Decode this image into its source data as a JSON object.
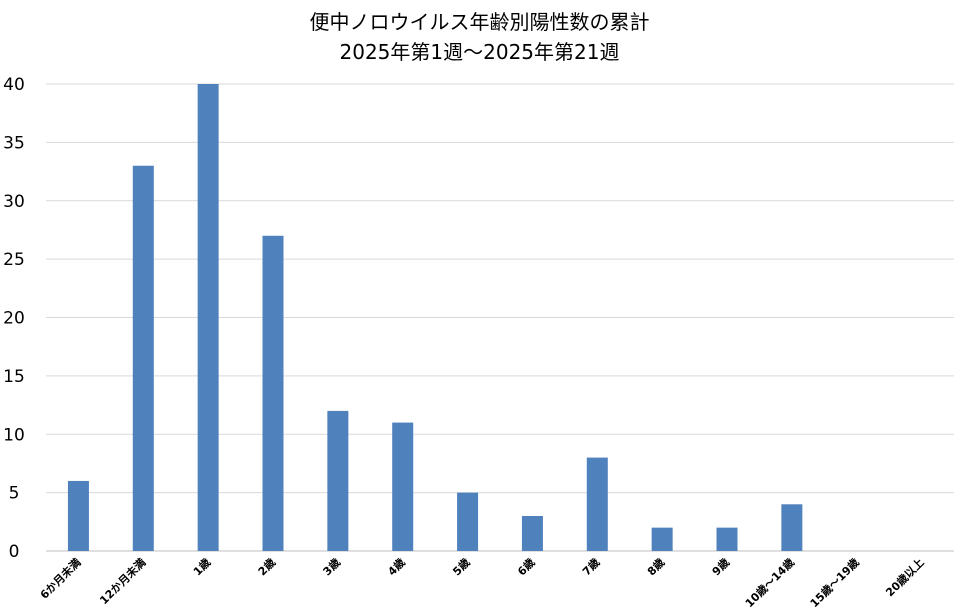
{
  "chart_data": {
    "type": "bar",
    "title": "便中ノロウイルス年齢別陽性数の累計",
    "subtitle": "2025年第1週～2025年第21週",
    "categories": [
      "6か月未満",
      "12か月未満",
      "1歳",
      "2歳",
      "3歳",
      "4歳",
      "5歳",
      "6歳",
      "7歳",
      "8歳",
      "9歳",
      "10歳～14歳",
      "15歳～19歳",
      "20歳以上"
    ],
    "values": [
      6,
      33,
      40,
      27,
      12,
      11,
      5,
      3,
      8,
      2,
      2,
      4,
      0,
      0
    ],
    "ylim": [
      0,
      40
    ],
    "yticks": [
      0,
      5,
      10,
      15,
      20,
      25,
      30,
      35,
      40
    ],
    "grid": true,
    "bar_color": "#4F81BD",
    "grid_color": "#D9D9D9"
  }
}
